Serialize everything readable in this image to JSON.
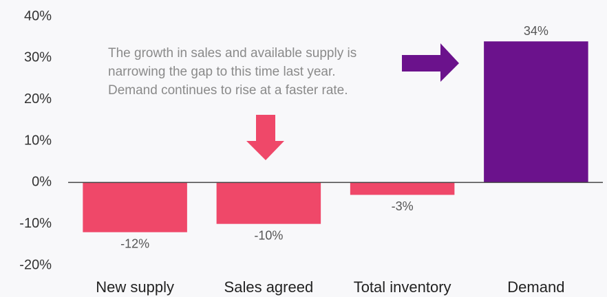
{
  "chart_data": {
    "type": "bar",
    "categories": [
      "New supply",
      "Sales agreed",
      "Total inventory",
      "Demand"
    ],
    "values": [
      -12,
      -10,
      -3,
      34
    ],
    "value_labels": [
      "-12%",
      "-10%",
      "-3%",
      "34%"
    ],
    "colors": [
      "#ef4869",
      "#ef4869",
      "#ef4869",
      "#6b128c"
    ],
    "ylim": [
      -20,
      40
    ],
    "yticks": [
      {
        "value": -20,
        "label": "-20%"
      },
      {
        "value": -10,
        "label": "-10%"
      },
      {
        "value": 0,
        "label": "0%"
      },
      {
        "value": 10,
        "label": "10%"
      },
      {
        "value": 20,
        "label": "20%"
      },
      {
        "value": 30,
        "label": "30%"
      },
      {
        "value": 40,
        "label": "40%"
      }
    ],
    "annotation": [
      "The growth in sales and available supply is",
      "narrowing the gap to this time last year.",
      "Demand continues to rise at a faster rate."
    ]
  }
}
